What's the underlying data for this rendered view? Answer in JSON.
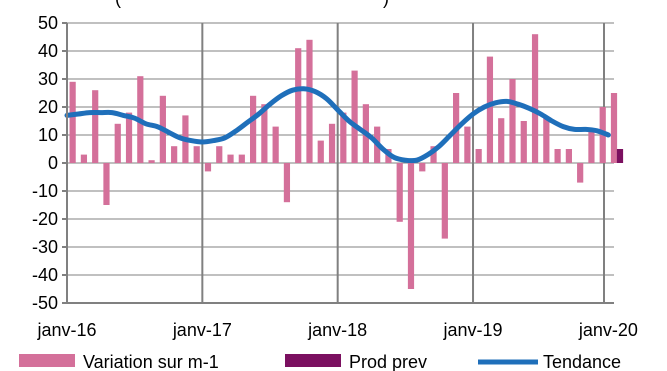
{
  "chart_data": {
    "type": "bar",
    "title": "",
    "title_fragment": "(",
    "title_fragment_2": ")",
    "xlabel": "",
    "ylabel": "",
    "ylim": [
      -50,
      50
    ],
    "yticks": [
      -50,
      -40,
      -30,
      -20,
      -10,
      0,
      10,
      20,
      30,
      40,
      50
    ],
    "x_labels": [
      {
        "index": 0,
        "label": "janv-16"
      },
      {
        "index": 12,
        "label": "janv-17"
      },
      {
        "index": 24,
        "label": "janv-18"
      },
      {
        "index": 36,
        "label": "janv-19"
      },
      {
        "index": 48,
        "label": "janv-20"
      }
    ],
    "year_gridline_indices": [
      12,
      24,
      36,
      48
    ],
    "horizontal_grid": true,
    "legend_position": "bottom",
    "colors": {
      "variation": "#d4709a",
      "prod_prev": "#7b1060",
      "tendance": "#1f6fba",
      "grid": "#808080",
      "axis": "#808080"
    },
    "series": [
      {
        "name": "Variation sur m-1",
        "kind": "bar",
        "values": [
          29,
          3,
          26,
          -15,
          14,
          18,
          31,
          1,
          24,
          6,
          17,
          6,
          -3,
          6,
          3,
          3,
          24,
          21,
          13,
          -14,
          41,
          44,
          8,
          14,
          18,
          33,
          21,
          13,
          5,
          -21,
          -45,
          -3,
          6,
          -27,
          25,
          13,
          5,
          38,
          16,
          30,
          15,
          46,
          16,
          5,
          5,
          -7,
          12,
          20,
          25
        ]
      },
      {
        "name": "Prod prev",
        "kind": "bar",
        "values": [
          null,
          null,
          null,
          null,
          null,
          null,
          null,
          null,
          null,
          null,
          null,
          null,
          null,
          null,
          null,
          null,
          null,
          null,
          null,
          null,
          null,
          null,
          null,
          null,
          null,
          null,
          null,
          null,
          null,
          null,
          null,
          null,
          null,
          null,
          null,
          null,
          null,
          null,
          null,
          null,
          null,
          null,
          null,
          null,
          null,
          null,
          null,
          null,
          5
        ]
      },
      {
        "name": "Tendance",
        "kind": "line",
        "values": [
          17,
          17.5,
          18,
          18,
          18,
          17,
          16,
          14,
          13,
          11,
          9,
          8,
          7.5,
          8,
          9,
          11.5,
          14.5,
          17.5,
          21,
          24,
          26,
          26.5,
          25.5,
          23,
          19,
          15,
          12,
          9,
          5,
          2,
          1,
          1,
          3,
          6,
          10,
          14,
          17.5,
          20,
          21.5,
          22,
          21,
          19.5,
          17.5,
          15,
          13,
          12,
          12,
          11.5,
          10
        ]
      }
    ]
  }
}
